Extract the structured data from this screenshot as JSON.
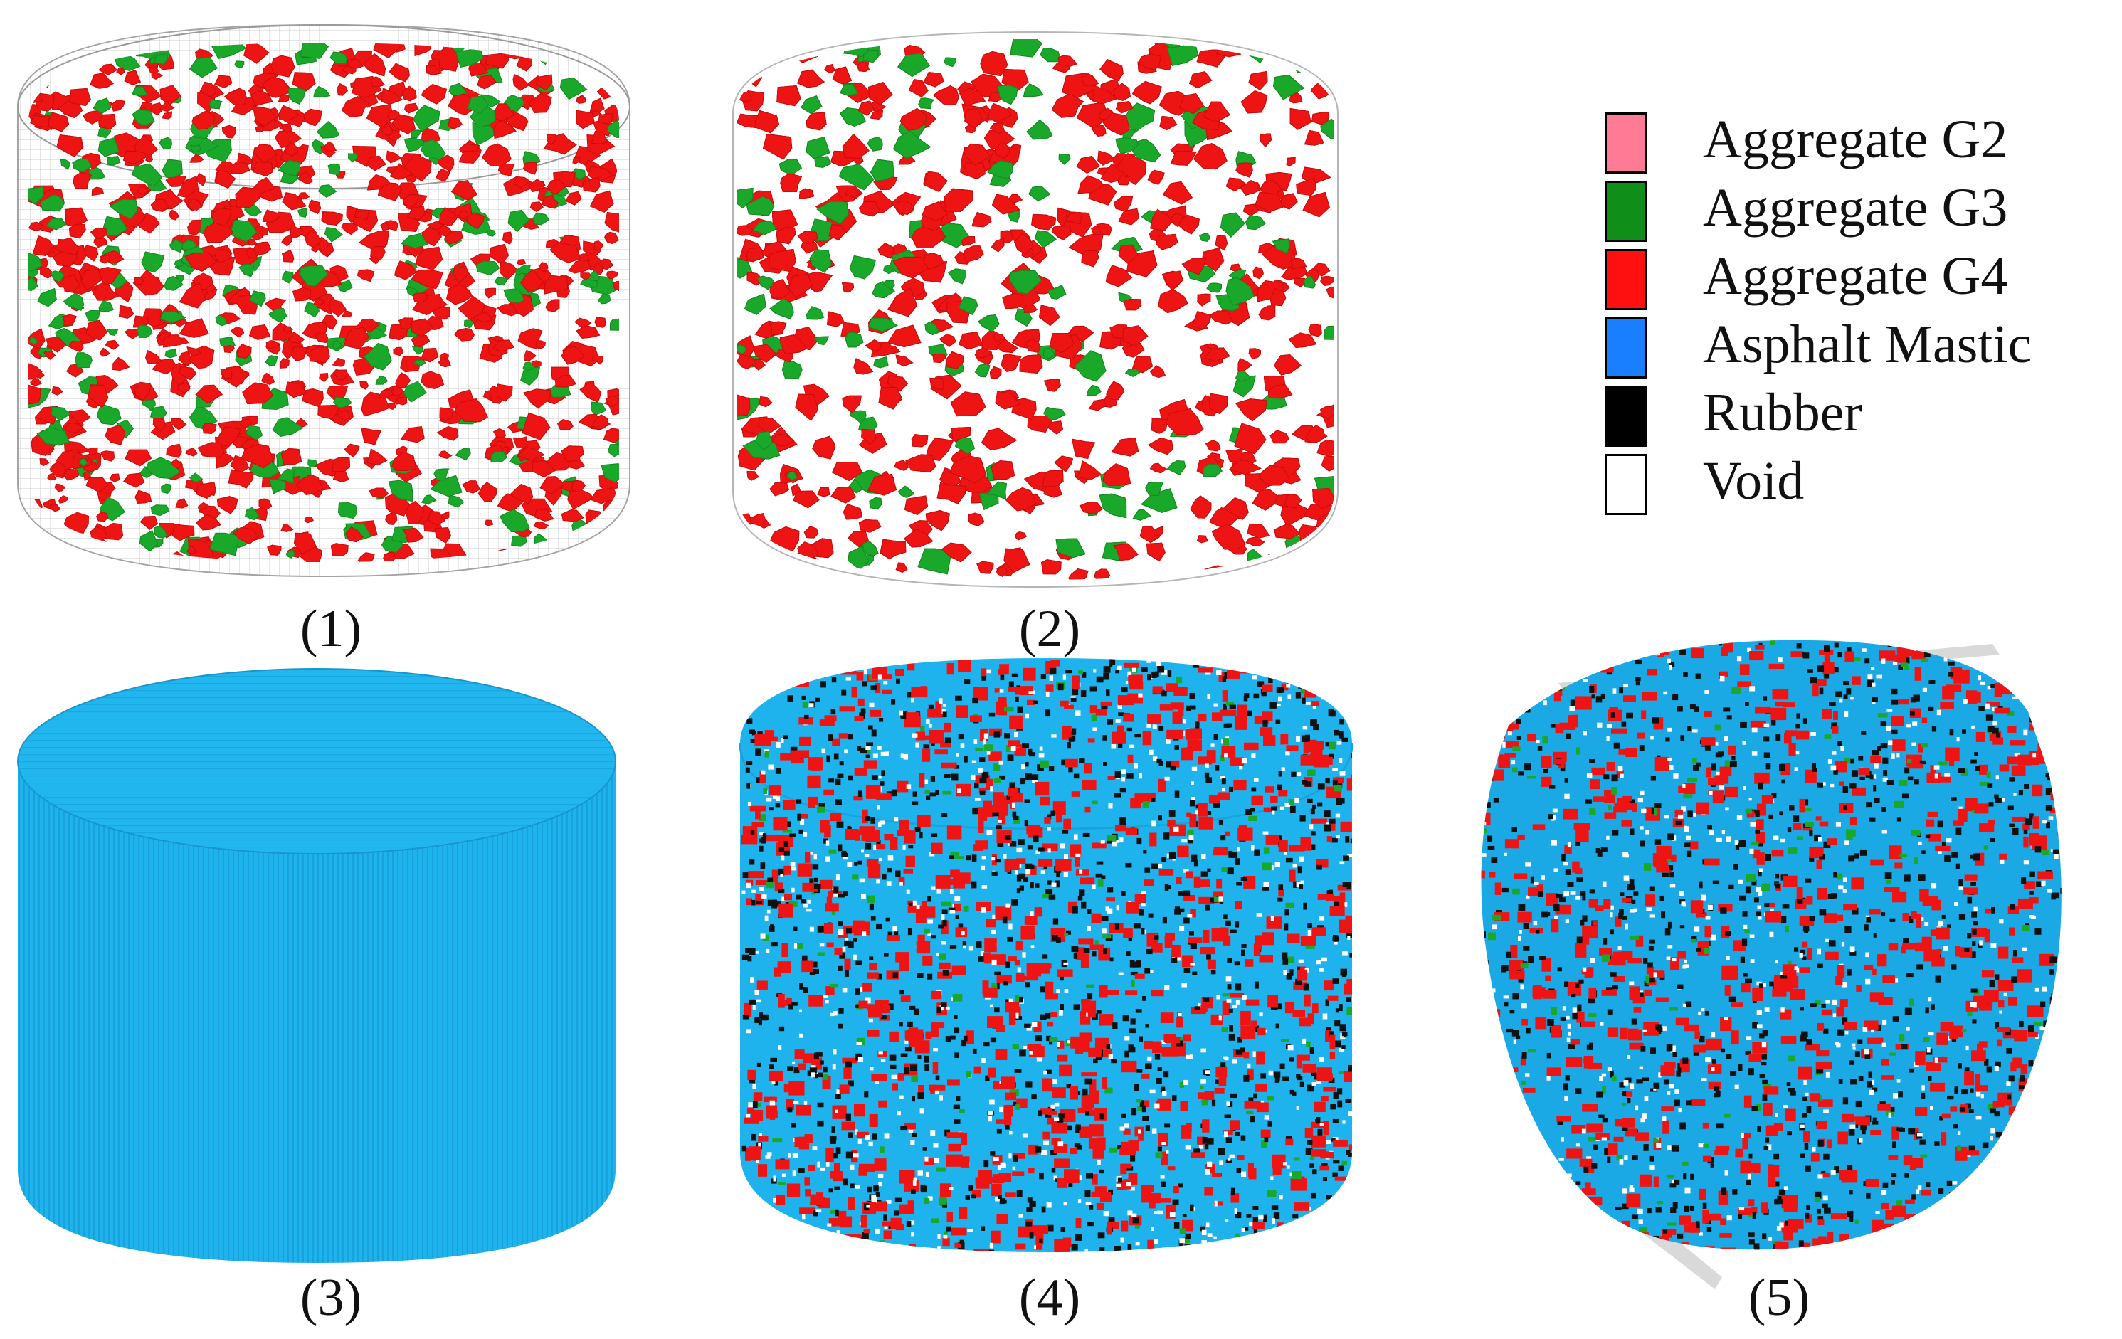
{
  "panels": [
    {
      "label": "(1)"
    },
    {
      "label": "(2)"
    },
    {
      "label": "(3)"
    },
    {
      "label": "(4)"
    },
    {
      "label": "(5)"
    }
  ],
  "legend": {
    "items": [
      {
        "label": "Aggregate G2",
        "color": "#ff7a95"
      },
      {
        "label": "Aggregate G3",
        "color": "#0f8f1a"
      },
      {
        "label": "Aggregate G4",
        "color": "#ff1010"
      },
      {
        "label": "Asphalt Mastic",
        "color": "#1a7fff"
      },
      {
        "label": "Rubber",
        "color": "#000000"
      },
      {
        "label": "Void",
        "color": "#ffffff"
      }
    ]
  },
  "colors": {
    "aggregate_red": "#ee1414",
    "aggregate_green": "#1aa82a",
    "mastic_blue": "#1fb3ee",
    "rubber": "#111111",
    "void": "#ffffff",
    "container_outline": "#9a9a9a",
    "plate_gray": "#cfcfcf"
  }
}
